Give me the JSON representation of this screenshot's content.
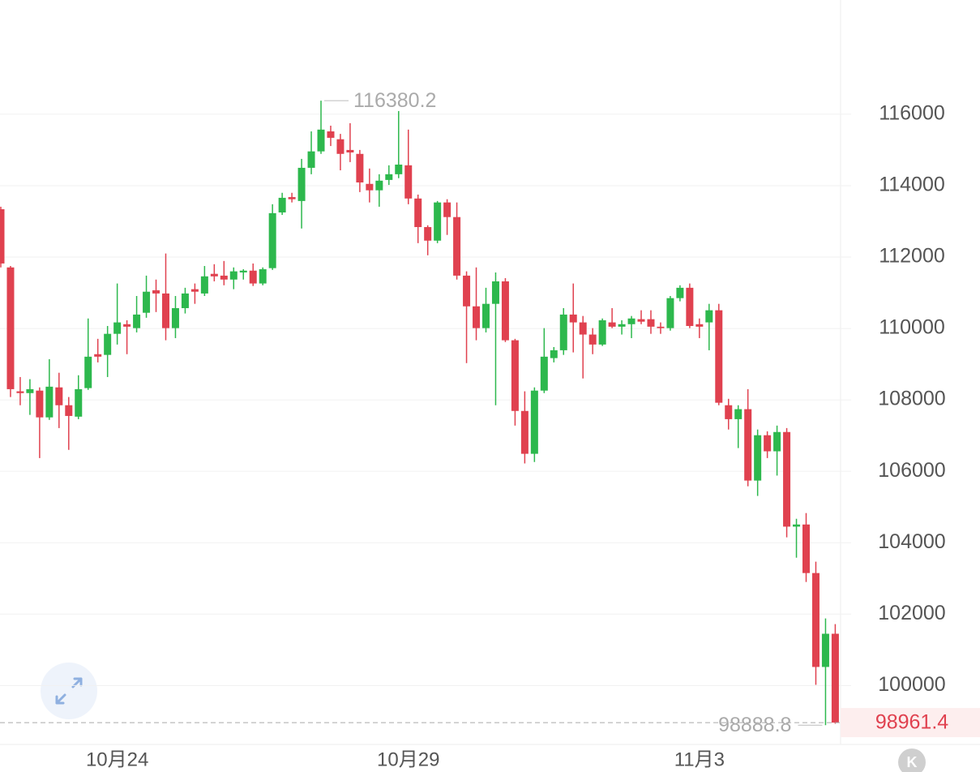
{
  "chart_data": {
    "type": "candlestick",
    "categories": [
      null,
      null,
      null,
      null,
      null,
      null,
      null,
      null,
      null,
      null,
      null,
      null,
      "10月24",
      null,
      null,
      null,
      null,
      null,
      null,
      null,
      null,
      null,
      null,
      null,
      null,
      null,
      null,
      null,
      null,
      null,
      null,
      null,
      null,
      null,
      null,
      null,
      null,
      null,
      null,
      null,
      null,
      null,
      "10月29",
      null,
      null,
      null,
      null,
      null,
      null,
      null,
      null,
      null,
      null,
      null,
      null,
      null,
      null,
      null,
      null,
      null,
      null,
      null,
      null,
      null,
      null,
      null,
      null,
      null,
      null,
      null,
      null,
      null,
      "11月3",
      null,
      null,
      null,
      null,
      null,
      null,
      null,
      null,
      null,
      null,
      null,
      null,
      null,
      null
    ],
    "open": [
      113340,
      111710,
      108240,
      108190,
      108260,
      107510,
      108350,
      107850,
      107530,
      108330,
      109280,
      109260,
      109850,
      110120,
      110010,
      110440,
      111070,
      110980,
      110010,
      110570,
      111100,
      110980,
      111530,
      111480,
      111370,
      111570,
      111620,
      111260,
      111690,
      113250,
      113680,
      113570,
      114500,
      114960,
      115520,
      115300,
      115000,
      114890,
      114050,
      113870,
      114160,
      114320,
      114570,
      113640,
      112840,
      112460,
      113530,
      113120,
      111480,
      110620,
      110010,
      110690,
      111320,
      109670,
      107690,
      106490,
      108260,
      109170,
      109390,
      110390,
      110170,
      109830,
      109550,
      110170,
      110050,
      110120,
      110260,
      110260,
      110050,
      110010,
      110850,
      111140,
      110120,
      110170,
      110510,
      107850,
      107460,
      107740,
      105740,
      107010,
      106560,
      107100,
      104450,
      104510,
      103150,
      100520,
      101450
    ],
    "high": [
      113410,
      111750,
      108640,
      108580,
      108350,
      109140,
      108760,
      108080,
      108690,
      110280,
      109710,
      110070,
      111260,
      110230,
      110910,
      111480,
      111370,
      112100,
      110910,
      111140,
      111260,
      111750,
      111800,
      111890,
      111710,
      111660,
      111820,
      111710,
      113480,
      113800,
      113800,
      114750,
      115520,
      116380.2,
      115680,
      115450,
      115750,
      115000,
      114480,
      114320,
      114570,
      116090,
      115570,
      113750,
      112890,
      113570,
      113620,
      113530,
      111600,
      111710,
      111140,
      111570,
      111410,
      109710,
      108240,
      108350,
      110010,
      109480,
      110570,
      111260,
      110350,
      110010,
      110280,
      110570,
      110230,
      110350,
      110510,
      110510,
      110170,
      110910,
      111210,
      111260,
      110280,
      110690,
      110690,
      108030,
      107850,
      108300,
      107170,
      107120,
      107280,
      107210,
      104670,
      104830,
      103470,
      101880,
      101720
    ],
    "low": [
      111710,
      108080,
      107850,
      107580,
      106370,
      107440,
      107210,
      106600,
      107460,
      108280,
      109050,
      108640,
      109550,
      109280,
      109890,
      110300,
      110460,
      109670,
      109730,
      110420,
      110690,
      110910,
      111320,
      111210,
      111100,
      111370,
      111190,
      111210,
      111640,
      113180,
      113530,
      112800,
      114320,
      114890,
      115110,
      114430,
      114660,
      113820,
      113530,
      113410,
      114020,
      114210,
      113480,
      112390,
      112050,
      112390,
      112620,
      111370,
      109030,
      109670,
      109890,
      107850,
      109620,
      107280,
      106220,
      106260,
      108190,
      109050,
      109260,
      109330,
      108600,
      109280,
      109510,
      110010,
      109830,
      109730,
      110120,
      109850,
      109850,
      109940,
      110760,
      110010,
      109730,
      109390,
      107850,
      107170,
      106650,
      105580,
      105310,
      106370,
      105880,
      104150,
      103580,
      102900,
      100020,
      98888.8,
      98930
    ],
    "close": [
      111820,
      108300,
      108190,
      108300,
      107510,
      108370,
      107850,
      107550,
      108300,
      109210,
      109210,
      109850,
      110170,
      110050,
      110390,
      111030,
      110980,
      110010,
      110570,
      110980,
      111030,
      111460,
      111460,
      111370,
      111600,
      111620,
      111260,
      111660,
      113230,
      113660,
      113620,
      114500,
      114960,
      115570,
      115340,
      114890,
      114930,
      114090,
      113870,
      114140,
      114320,
      114590,
      113640,
      112840,
      112460,
      113530,
      113120,
      111480,
      110620,
      110010,
      110690,
      111320,
      109670,
      107690,
      106490,
      108260,
      109210,
      109390,
      110390,
      110170,
      109830,
      109550,
      110230,
      110050,
      110120,
      110280,
      110190,
      110050,
      110010,
      110850,
      111140,
      110070,
      110050,
      110510,
      107920,
      107460,
      107740,
      105740,
      107010,
      106560,
      107100,
      104450,
      104510,
      103150,
      100520,
      101450,
      98961.4
    ],
    "up_color": "#2db84d",
    "down_color": "#e0414f",
    "ylim": [
      98350,
      119200
    ],
    "yticks": [
      100000,
      102000,
      104000,
      106000,
      108000,
      110000,
      112000,
      114000,
      116000
    ],
    "grid": true,
    "badge": "K"
  }
}
